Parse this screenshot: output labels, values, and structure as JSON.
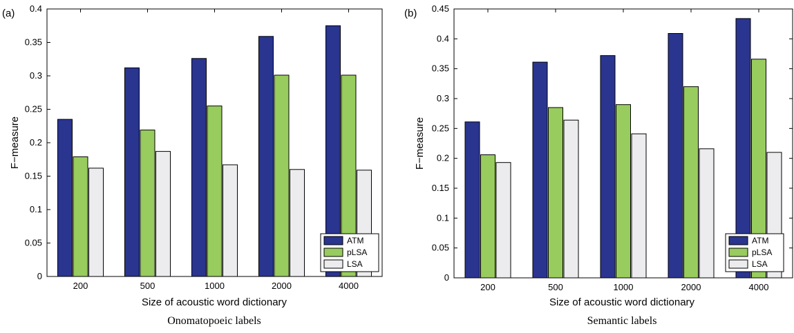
{
  "chart_data": [
    {
      "type": "bar",
      "panel_label": "(a)",
      "categories": [
        "200",
        "500",
        "1000",
        "2000",
        "4000"
      ],
      "series": [
        {
          "name": "ATM",
          "values": [
            0.235,
            0.312,
            0.326,
            0.359,
            0.375
          ]
        },
        {
          "name": "pLSA",
          "values": [
            0.179,
            0.219,
            0.255,
            0.301,
            0.301
          ]
        },
        {
          "name": "LSA",
          "values": [
            0.162,
            0.187,
            0.167,
            0.16,
            0.159
          ]
        }
      ],
      "xlabel": "Size of acoustic word dictionary",
      "ylabel": "F−measure",
      "caption": "Onomatopoeic labels",
      "ylim": [
        0,
        0.4
      ],
      "yticks": [
        "0",
        "0.05",
        "0.1",
        "0.15",
        "0.2",
        "0.25",
        "0.3",
        "0.35",
        "0.4"
      ],
      "legend_position": "bottom-right",
      "grid": false
    },
    {
      "type": "bar",
      "panel_label": "(b)",
      "categories": [
        "200",
        "500",
        "1000",
        "2000",
        "4000"
      ],
      "series": [
        {
          "name": "ATM",
          "values": [
            0.261,
            0.361,
            0.372,
            0.409,
            0.434
          ]
        },
        {
          "name": "pLSA",
          "values": [
            0.206,
            0.285,
            0.29,
            0.32,
            0.366
          ]
        },
        {
          "name": "LSA",
          "values": [
            0.193,
            0.264,
            0.241,
            0.216,
            0.21
          ]
        }
      ],
      "xlabel": "Size of acoustic word dictionary",
      "ylabel": "F−measure",
      "caption": "Semantic labels",
      "ylim": [
        0,
        0.45
      ],
      "yticks": [
        "0",
        "0.05",
        "0.1",
        "0.15",
        "0.2",
        "0.25",
        "0.3",
        "0.35",
        "0.4",
        "0.45"
      ],
      "legend_position": "bottom-right",
      "grid": false
    }
  ],
  "colors": {
    "ATM": "#2a3590",
    "pLSA": "#98cc5e",
    "LSA": "#ececee",
    "edge": "#000000"
  }
}
